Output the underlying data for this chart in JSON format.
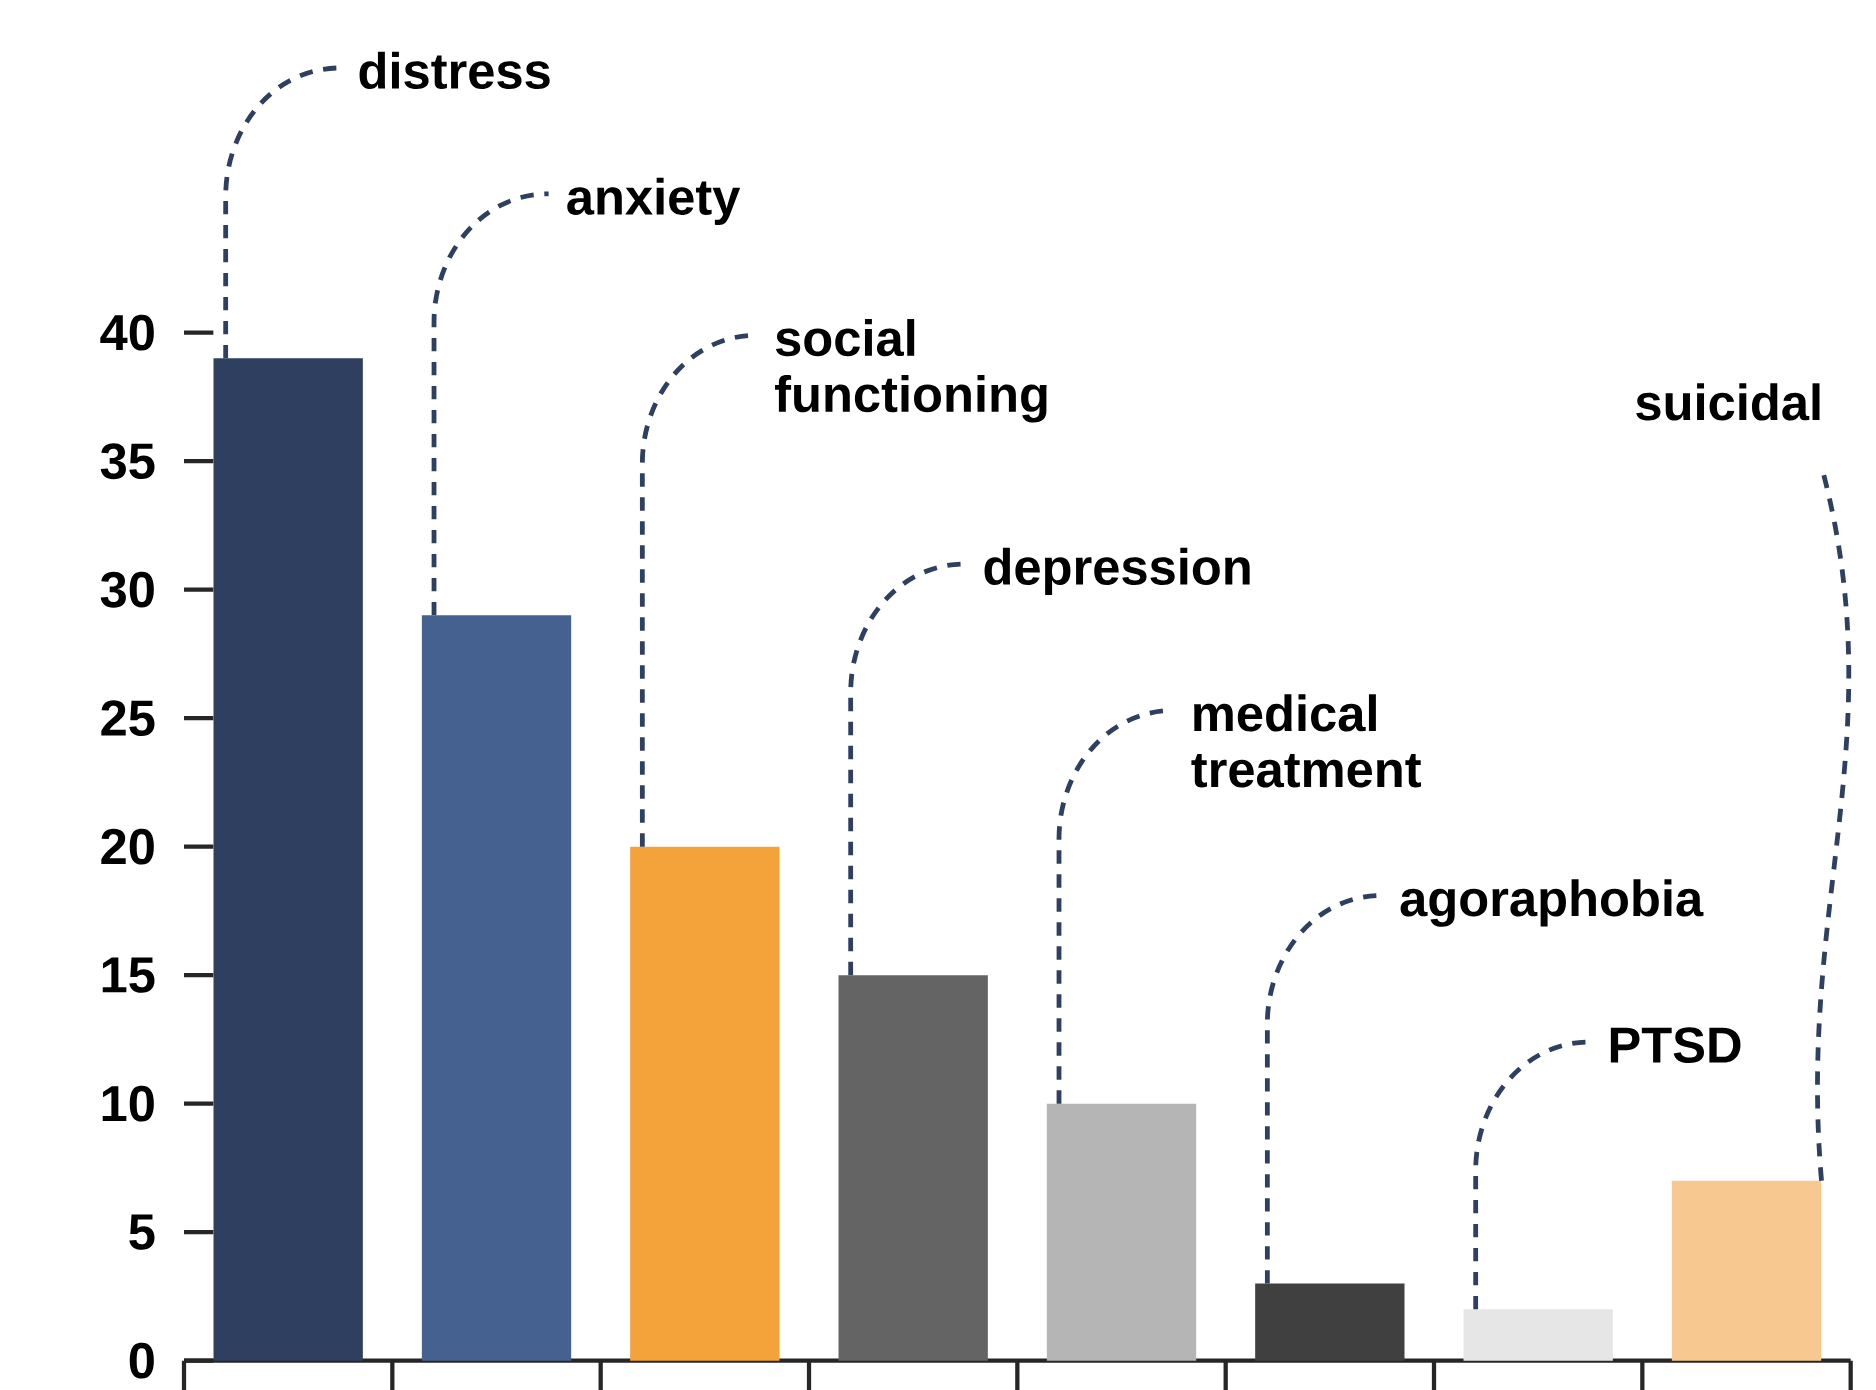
{
  "chart_data": {
    "type": "bar",
    "categories": [
      null,
      null,
      null,
      null,
      null,
      null,
      null,
      null
    ],
    "values": [
      39,
      29,
      20,
      15,
      10,
      3,
      2,
      7
    ],
    "colors": [
      "#2e3f5f",
      "#44618f",
      "#f4a33b",
      "#646464",
      "#b5b5b5",
      "#404040",
      "#e6e6e6",
      "#f7c88f"
    ],
    "ylim": [
      0,
      40
    ],
    "yticks": [
      0,
      5,
      10,
      15,
      20,
      25,
      30,
      35,
      40
    ],
    "annotations": [
      "distress",
      "anxiety",
      "social functioning",
      "depression",
      "medical treatment",
      "agoraphobia",
      "PTSD",
      "suicidal"
    ]
  }
}
